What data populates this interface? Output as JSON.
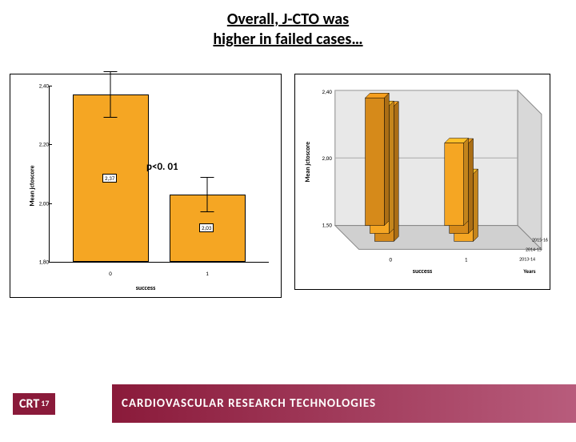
{
  "slide": {
    "title_line1": "Overall, J-CTO was",
    "title_line2": "higher in failed cases…",
    "title_fontsize": 20,
    "title_color": "#000000"
  },
  "left_chart": {
    "type": "bar",
    "ylabel": "Mean jctoscore",
    "xlabel": "success",
    "ylim": [
      1.8,
      2.4
    ],
    "yticks": [
      1.8,
      2.0,
      2.2,
      2.4
    ],
    "ytick_labels": [
      "1,80",
      "2,00",
      "2,20",
      "2,40"
    ],
    "categories": [
      "0",
      "1"
    ],
    "values": [
      2.37,
      2.03
    ],
    "err_half": [
      0.08,
      0.06
    ],
    "value_labels": [
      "2,37",
      "2,03"
    ],
    "bar_color": "#f5a623",
    "bar_border": "#000000",
    "background_color": "#ffffff",
    "p_label": "p<0. 01",
    "p_label_fontsize": 13
  },
  "right_chart": {
    "type": "bar-3d",
    "ylabel": "Mean jctoscore",
    "xlabel1": "success",
    "xlabel2": "Years",
    "ylim": [
      1.5,
      2.4
    ],
    "ytick_labels": [
      "1,50",
      "2,00",
      "2,40"
    ],
    "x1_categories": [
      "0",
      "1"
    ],
    "x2_categories": [
      "2015-16",
      "2014-15",
      "2013-14"
    ],
    "bars": [
      {
        "x1": 0,
        "x2": 0,
        "value": 2.4,
        "color": "#d68a1a"
      },
      {
        "x1": 0,
        "x2": 1,
        "value": 2.35,
        "color": "#f5a623"
      },
      {
        "x1": 0,
        "x2": 2,
        "value": 2.35,
        "color": "#d68a1a"
      },
      {
        "x1": 1,
        "x2": 0,
        "value": 1.95,
        "color": "#f5a623"
      },
      {
        "x1": 1,
        "x2": 1,
        "value": 2.1,
        "color": "#d68a1a"
      },
      {
        "x1": 1,
        "x2": 2,
        "value": 2.05,
        "color": "#f5a623"
      }
    ],
    "floor_color": "#d0d0d0",
    "wall_color": "#e8e8e8"
  },
  "footer": {
    "logo_text": "CRT",
    "logo_year": "17",
    "logo_bg": "#8a1a3a",
    "band_text": "CARDIOVASCULAR RESEARCH TECHNOLOGIES",
    "band_color_from": "#8a1a3a",
    "band_color_to": "#b85c7c",
    "text_color": "#ffffff",
    "text_fontsize": 15
  }
}
